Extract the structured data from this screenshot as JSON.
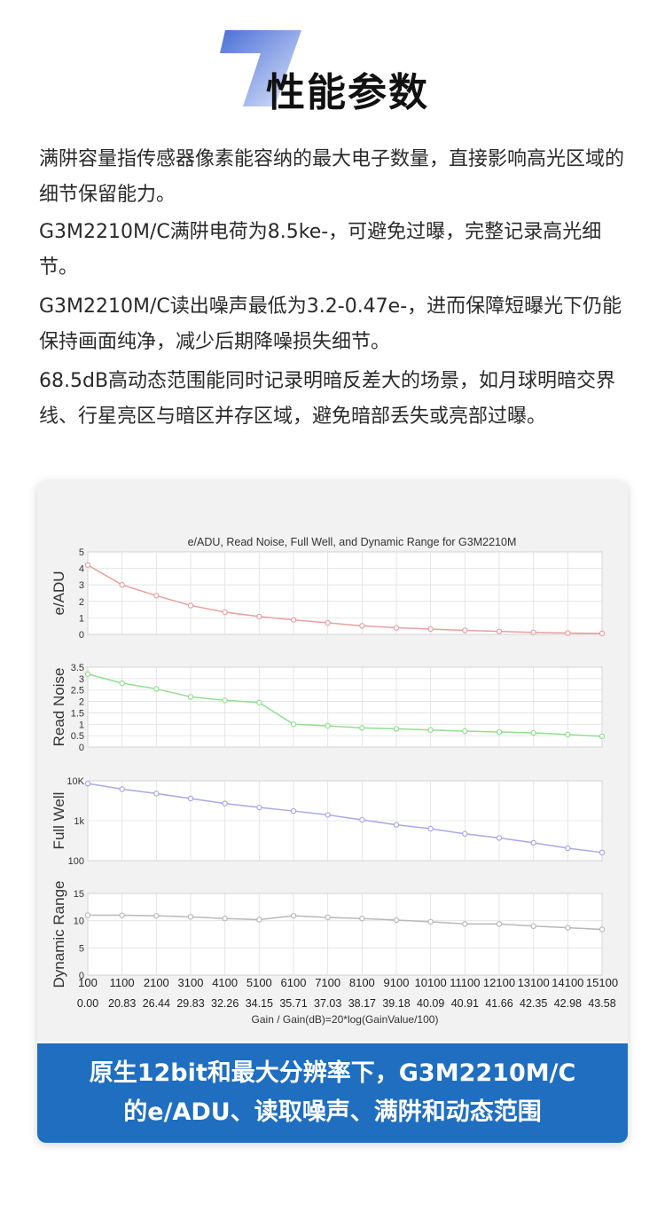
{
  "header": {
    "number": "7",
    "title": "性能参数"
  },
  "paragraphs": [
    "满阱容量指传感器像素能容纳的最大电子数量，直接影响高光区域的细节保留能力。",
    "G3M2210M/C满阱电荷为8.5ke-，可避免过曝，完整记录高光细节。",
    "G3M2210M/C读出噪声最低为3.2-0.47e-，进而保障短曝光下仍能保持画面纯净，减少后期降噪损失细节。",
    "68.5dB高动态范围能同时记录明暗反差大的场景，如月球明暗交界线、行星亮区与暗区并存区域，避免暗部丢失或亮部过曝。"
  ],
  "caption": {
    "line1": "原生12bit和最大分辨率下，G3M2210M/C",
    "line2": "的e/ADU、读取噪声、满阱和动态范围"
  },
  "chart_data": {
    "type": "line",
    "title": "e/ADU, Read Noise, Full Well, and Dynamic Range for G3M2210M",
    "xlabel": "Gain / Gain(dB)=20*log(GainValue/100)",
    "x": [
      100,
      1100,
      2100,
      3100,
      4100,
      5100,
      6100,
      7100,
      8100,
      9100,
      10100,
      11100,
      12100,
      13100,
      14100,
      15100
    ],
    "x_db": [
      "0.00",
      "20.83",
      "26.44",
      "29.83",
      "32.26",
      "34.15",
      "35.71",
      "37.03",
      "38.17",
      "39.18",
      "40.09",
      "40.91",
      "41.66",
      "42.35",
      "42.98",
      "43.58"
    ],
    "grid": true,
    "series": [
      {
        "name": "e/ADU",
        "color": "#e8a0a0",
        "ylim": [
          0,
          5
        ],
        "yticks": [
          "0",
          "1",
          "2",
          "3",
          "4",
          "5"
        ],
        "scale": "linear",
        "values": [
          4.2,
          3.0,
          2.35,
          1.75,
          1.35,
          1.08,
          0.88,
          0.7,
          0.52,
          0.4,
          0.32,
          0.24,
          0.18,
          0.12,
          0.08,
          0.06
        ]
      },
      {
        "name": "Read Noise",
        "color": "#8ee08e",
        "ylim": [
          0,
          3.5
        ],
        "yticks": [
          "0",
          "0.5",
          "1",
          "1.5",
          "2",
          "2.5",
          "3",
          "3.5"
        ],
        "scale": "linear",
        "values": [
          3.2,
          2.8,
          2.55,
          2.2,
          2.05,
          1.95,
          1.0,
          0.93,
          0.84,
          0.8,
          0.75,
          0.7,
          0.66,
          0.62,
          0.55,
          0.47
        ]
      },
      {
        "name": "Full Well",
        "color": "#a8a8e8",
        "ylim": [
          100,
          10000
        ],
        "yticks": [
          "100",
          "1k",
          "10K"
        ],
        "scale": "log",
        "values": [
          8500,
          6200,
          4800,
          3600,
          2700,
          2150,
          1750,
          1400,
          1050,
          790,
          630,
          470,
          370,
          280,
          205,
          160
        ]
      },
      {
        "name": "Dynamic Range",
        "color": "#b8b8b8",
        "ylim": [
          0,
          15
        ],
        "yticks": [
          "0",
          "5",
          "10",
          "15"
        ],
        "scale": "linear",
        "values": [
          11.0,
          11.0,
          10.9,
          10.7,
          10.4,
          10.2,
          10.9,
          10.6,
          10.4,
          10.1,
          9.8,
          9.4,
          9.4,
          9.0,
          8.7,
          8.4
        ]
      }
    ]
  }
}
